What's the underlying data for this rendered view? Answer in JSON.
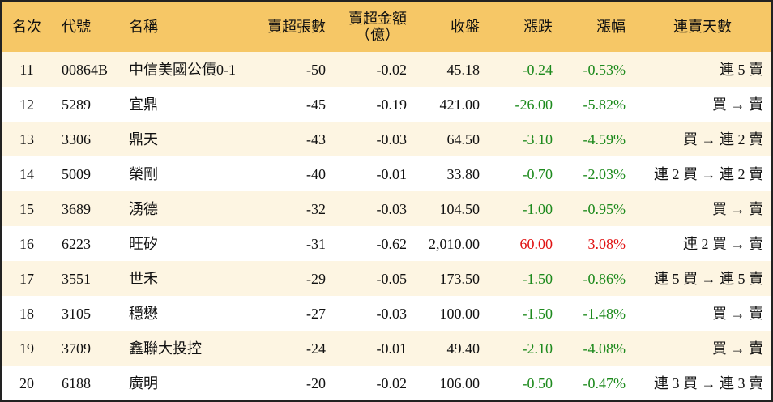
{
  "table": {
    "header": [
      "名次",
      "代號",
      "名稱",
      "賣超張數",
      "賣超金額\n（億）",
      "收盤",
      "漲跌",
      "漲幅",
      "連賣天數"
    ],
    "rows": [
      [
        "11",
        "00864B",
        "中信美國公債0-1",
        "-50",
        "-0.02",
        "45.18",
        "-0.24",
        "-0.53%",
        "連 5 賣"
      ],
      [
        "12",
        "5289",
        "宜鼎",
        "-45",
        "-0.19",
        "421.00",
        "-26.00",
        "-5.82%",
        "買 → 賣"
      ],
      [
        "13",
        "3306",
        "鼎天",
        "-43",
        "-0.03",
        "64.50",
        "-3.10",
        "-4.59%",
        "買 → 連 2 賣"
      ],
      [
        "14",
        "5009",
        "榮剛",
        "-40",
        "-0.01",
        "33.80",
        "-0.70",
        "-2.03%",
        "連 2 買 → 連 2 賣"
      ],
      [
        "15",
        "3689",
        "湧德",
        "-32",
        "-0.03",
        "104.50",
        "-1.00",
        "-0.95%",
        "買 → 賣"
      ],
      [
        "16",
        "6223",
        "旺矽",
        "-31",
        "-0.62",
        "2,010.00",
        "60.00",
        "3.08%",
        "連 2 買 → 賣"
      ],
      [
        "17",
        "3551",
        "世禾",
        "-29",
        "-0.05",
        "173.50",
        "-1.50",
        "-0.86%",
        "連 5 買 → 連 5 賣"
      ],
      [
        "18",
        "3105",
        "穩懋",
        "-27",
        "-0.03",
        "100.00",
        "-1.50",
        "-1.48%",
        "買 → 賣"
      ],
      [
        "19",
        "3709",
        "鑫聯大投控",
        "-24",
        "-0.01",
        "49.40",
        "-2.10",
        "-4.08%",
        "買 → 賣"
      ],
      [
        "20",
        "6188",
        "廣明",
        "-20",
        "-0.02",
        "106.00",
        "-0.50",
        "-0.47%",
        "連 3 買 → 連 3 賣"
      ]
    ]
  }
}
